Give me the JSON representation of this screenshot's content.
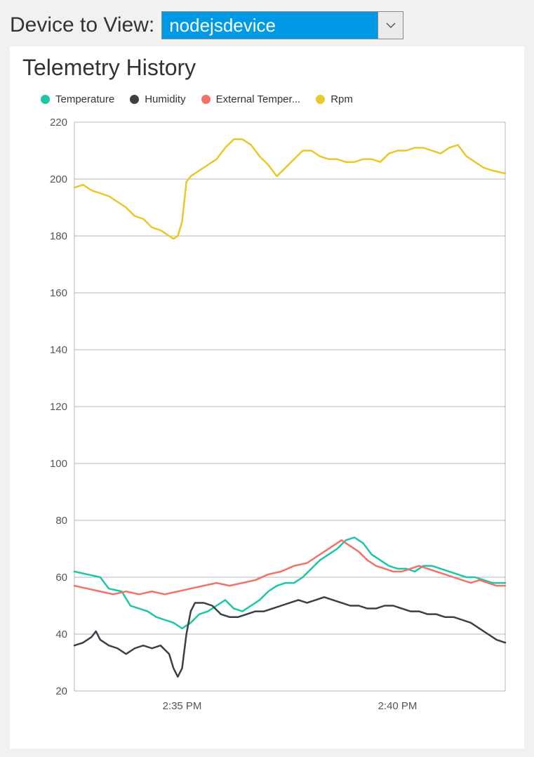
{
  "header": {
    "label": "Device to View:",
    "selected": "nodejsdevice"
  },
  "panel": {
    "title": "Telemetry History"
  },
  "chart": {
    "type": "line",
    "background_color": "#ffffff",
    "grid_color": "#999999",
    "axis_color": "#999999",
    "axis_fontsize": 15,
    "title_fontsize": 32,
    "line_width": 2.5,
    "ylim": [
      20,
      220
    ],
    "ytick_step": 20,
    "yticks": [
      20,
      40,
      60,
      80,
      100,
      120,
      140,
      160,
      180,
      200,
      220
    ],
    "xlim": [
      0,
      100
    ],
    "xticks": [
      {
        "x": 25,
        "label": "2:35 PM"
      },
      {
        "x": 75,
        "label": "2:40 PM"
      }
    ],
    "legend_position": "top",
    "series": [
      {
        "name": "Temperature",
        "color": "#1cc6a7",
        "data": [
          [
            0,
            62
          ],
          [
            3,
            61
          ],
          [
            6,
            60
          ],
          [
            8,
            56
          ],
          [
            11,
            55
          ],
          [
            13,
            50
          ],
          [
            15,
            49
          ],
          [
            17,
            48
          ],
          [
            19,
            46
          ],
          [
            21,
            45
          ],
          [
            23,
            44
          ],
          [
            25,
            42
          ],
          [
            27,
            44
          ],
          [
            29,
            47
          ],
          [
            31,
            48
          ],
          [
            33,
            50
          ],
          [
            35,
            52
          ],
          [
            37,
            49
          ],
          [
            39,
            48
          ],
          [
            41,
            50
          ],
          [
            43,
            52
          ],
          [
            45,
            55
          ],
          [
            47,
            57
          ],
          [
            49,
            58
          ],
          [
            51,
            58
          ],
          [
            53,
            60
          ],
          [
            55,
            63
          ],
          [
            57,
            66
          ],
          [
            59,
            68
          ],
          [
            61,
            70
          ],
          [
            63,
            73
          ],
          [
            65,
            74
          ],
          [
            67,
            72
          ],
          [
            69,
            68
          ],
          [
            71,
            66
          ],
          [
            73,
            64
          ],
          [
            75,
            63
          ],
          [
            77,
            63
          ],
          [
            79,
            62
          ],
          [
            81,
            64
          ],
          [
            83,
            64
          ],
          [
            85,
            63
          ],
          [
            87,
            62
          ],
          [
            89,
            61
          ],
          [
            91,
            60
          ],
          [
            93,
            60
          ],
          [
            95,
            59
          ],
          [
            97,
            58
          ],
          [
            100,
            58
          ]
        ]
      },
      {
        "name": "Humidity",
        "color": "#3a4048",
        "data": [
          [
            0,
            36
          ],
          [
            2,
            37
          ],
          [
            4,
            39
          ],
          [
            5,
            41
          ],
          [
            6,
            38
          ],
          [
            8,
            36
          ],
          [
            10,
            35
          ],
          [
            12,
            33
          ],
          [
            14,
            35
          ],
          [
            16,
            36
          ],
          [
            18,
            35
          ],
          [
            20,
            36
          ],
          [
            22,
            33
          ],
          [
            23,
            28
          ],
          [
            24,
            25
          ],
          [
            25,
            28
          ],
          [
            26,
            40
          ],
          [
            27,
            48
          ],
          [
            28,
            51
          ],
          [
            30,
            51
          ],
          [
            32,
            50
          ],
          [
            34,
            47
          ],
          [
            36,
            46
          ],
          [
            38,
            46
          ],
          [
            40,
            47
          ],
          [
            42,
            48
          ],
          [
            44,
            48
          ],
          [
            46,
            49
          ],
          [
            48,
            50
          ],
          [
            50,
            51
          ],
          [
            52,
            52
          ],
          [
            54,
            51
          ],
          [
            56,
            52
          ],
          [
            58,
            53
          ],
          [
            60,
            52
          ],
          [
            62,
            51
          ],
          [
            64,
            50
          ],
          [
            66,
            50
          ],
          [
            68,
            49
          ],
          [
            70,
            49
          ],
          [
            72,
            50
          ],
          [
            74,
            50
          ],
          [
            76,
            49
          ],
          [
            78,
            48
          ],
          [
            80,
            48
          ],
          [
            82,
            47
          ],
          [
            84,
            47
          ],
          [
            86,
            46
          ],
          [
            88,
            46
          ],
          [
            90,
            45
          ],
          [
            92,
            44
          ],
          [
            94,
            42
          ],
          [
            96,
            40
          ],
          [
            98,
            38
          ],
          [
            100,
            37
          ]
        ]
      },
      {
        "name": "External Temper...",
        "color": "#f47169",
        "data": [
          [
            0,
            57
          ],
          [
            3,
            56
          ],
          [
            6,
            55
          ],
          [
            9,
            54
          ],
          [
            12,
            55
          ],
          [
            15,
            54
          ],
          [
            18,
            55
          ],
          [
            21,
            54
          ],
          [
            24,
            55
          ],
          [
            27,
            56
          ],
          [
            30,
            57
          ],
          [
            33,
            58
          ],
          [
            36,
            57
          ],
          [
            39,
            58
          ],
          [
            42,
            59
          ],
          [
            45,
            61
          ],
          [
            48,
            62
          ],
          [
            51,
            64
          ],
          [
            54,
            65
          ],
          [
            57,
            68
          ],
          [
            60,
            71
          ],
          [
            62,
            73
          ],
          [
            64,
            71
          ],
          [
            66,
            69
          ],
          [
            68,
            66
          ],
          [
            70,
            64
          ],
          [
            72,
            63
          ],
          [
            74,
            62
          ],
          [
            76,
            62
          ],
          [
            78,
            63
          ],
          [
            80,
            64
          ],
          [
            82,
            63
          ],
          [
            84,
            62
          ],
          [
            86,
            61
          ],
          [
            88,
            60
          ],
          [
            90,
            59
          ],
          [
            92,
            58
          ],
          [
            94,
            59
          ],
          [
            96,
            58
          ],
          [
            98,
            57
          ],
          [
            100,
            57
          ]
        ]
      },
      {
        "name": "Rpm",
        "color": "#e8c82a",
        "data": [
          [
            0,
            197
          ],
          [
            2,
            198
          ],
          [
            4,
            196
          ],
          [
            6,
            195
          ],
          [
            8,
            194
          ],
          [
            10,
            192
          ],
          [
            12,
            190
          ],
          [
            14,
            187
          ],
          [
            16,
            186
          ],
          [
            18,
            183
          ],
          [
            20,
            182
          ],
          [
            22,
            180
          ],
          [
            23,
            179
          ],
          [
            24,
            180
          ],
          [
            25,
            185
          ],
          [
            26,
            199
          ],
          [
            27,
            201
          ],
          [
            29,
            203
          ],
          [
            31,
            205
          ],
          [
            33,
            207
          ],
          [
            35,
            211
          ],
          [
            37,
            214
          ],
          [
            39,
            214
          ],
          [
            41,
            212
          ],
          [
            43,
            208
          ],
          [
            45,
            205
          ],
          [
            47,
            201
          ],
          [
            49,
            204
          ],
          [
            51,
            207
          ],
          [
            53,
            210
          ],
          [
            55,
            210
          ],
          [
            57,
            208
          ],
          [
            59,
            207
          ],
          [
            61,
            207
          ],
          [
            63,
            206
          ],
          [
            65,
            206
          ],
          [
            67,
            207
          ],
          [
            69,
            207
          ],
          [
            71,
            206
          ],
          [
            73,
            209
          ],
          [
            75,
            210
          ],
          [
            77,
            210
          ],
          [
            79,
            211
          ],
          [
            81,
            211
          ],
          [
            83,
            210
          ],
          [
            85,
            209
          ],
          [
            87,
            211
          ],
          [
            89,
            212
          ],
          [
            91,
            208
          ],
          [
            93,
            206
          ],
          [
            95,
            204
          ],
          [
            97,
            203
          ],
          [
            100,
            202
          ]
        ]
      }
    ]
  }
}
